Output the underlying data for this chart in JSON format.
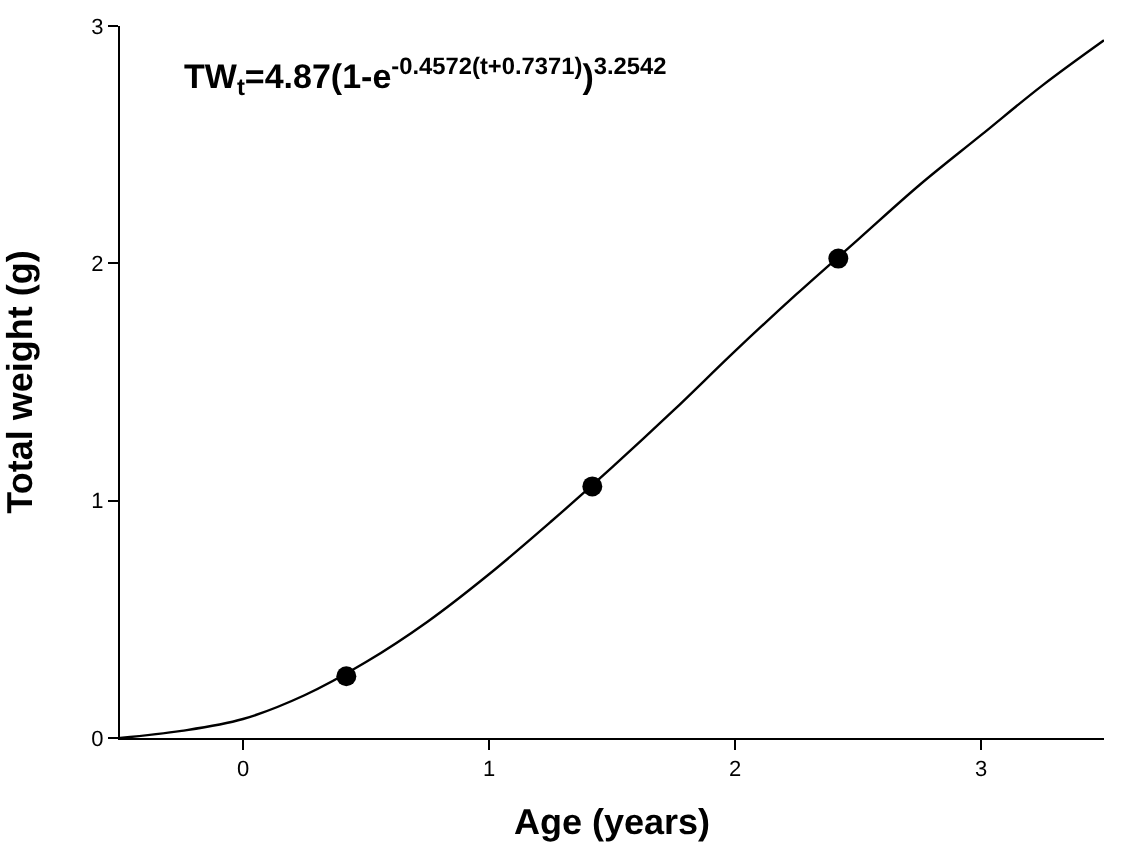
{
  "chart_data": {
    "type": "scatter",
    "xlabel": "Age (years)",
    "ylabel": "Total weight (g)",
    "annotations": [
      "TW$_{t}$=4.87(1-e$^{-0.4572(t+0.7371)}$)$^{3.2542}$"
    ],
    "xlim": [
      -0.5,
      3.5
    ],
    "xticks": [
      0,
      1,
      2,
      3
    ],
    "ylim": [
      0,
      3
    ],
    "yticks": [
      0,
      1,
      2,
      3
    ],
    "grid": false,
    "legend": false,
    "series": [
      {
        "type": "line",
        "color": "#000000",
        "marker": "none",
        "line_style": "solid",
        "x": [
          -0.5,
          -0.25,
          0,
          0.25,
          0.5,
          0.75,
          1,
          1.25,
          1.5,
          1.75,
          2,
          2.25,
          2.5,
          2.75,
          3,
          3.25,
          3.5
        ],
        "values": [
          0,
          0.03,
          0.08,
          0.18,
          0.32,
          0.49,
          0.69,
          0.91,
          1.14,
          1.38,
          1.63,
          1.87,
          2.1,
          2.33,
          2.54,
          2.75,
          2.94
        ]
      },
      {
        "color": "#000000",
        "marker": "circle",
        "x": [
          0.42,
          1.42,
          2.42
        ],
        "values": [
          0.26,
          1.06,
          2.02
        ]
      }
    ]
  }
}
